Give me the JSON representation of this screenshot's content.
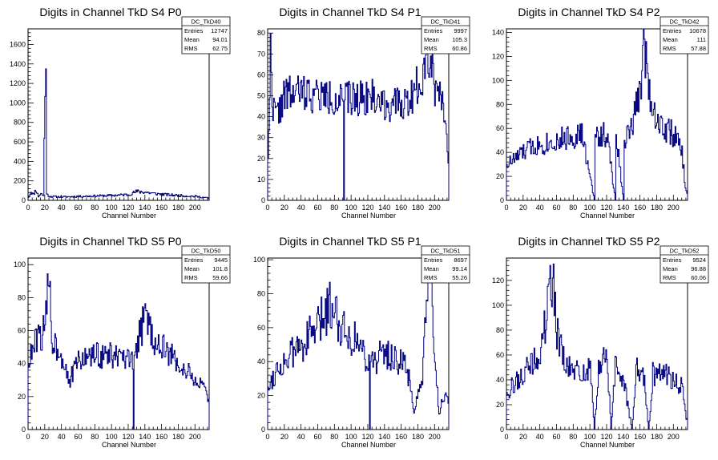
{
  "colors": {
    "line": "#000080",
    "frame": "#000000",
    "background": "#ffffff"
  },
  "chart_data": [
    {
      "type": "bar",
      "style": "step-histogram",
      "title": "Digits in Channel TkD S4 P0",
      "xlabel": "Channel Number",
      "xlim": [
        0,
        217
      ],
      "ylim": [
        0,
        1760
      ],
      "xticks": [
        0,
        20,
        40,
        60,
        80,
        100,
        120,
        140,
        160,
        180,
        200
      ],
      "yticks": [
        0,
        200,
        400,
        600,
        800,
        1000,
        1200,
        1400,
        1600
      ],
      "stats": {
        "name": "DC_TkD40",
        "rows": [
          [
            "Entries",
            "12747"
          ],
          [
            "Mean",
            "94.01"
          ],
          [
            "RMS",
            "62.75"
          ]
        ]
      },
      "anchors": [
        [
          0,
          30
        ],
        [
          3,
          90
        ],
        [
          6,
          60
        ],
        [
          9,
          110
        ],
        [
          12,
          40
        ],
        [
          15,
          70
        ],
        [
          18,
          50
        ],
        [
          21,
          1660
        ],
        [
          22,
          60
        ],
        [
          26,
          40
        ],
        [
          40,
          35
        ],
        [
          60,
          40
        ],
        [
          80,
          45
        ],
        [
          100,
          50
        ],
        [
          120,
          60
        ],
        [
          130,
          90
        ],
        [
          140,
          85
        ],
        [
          150,
          70
        ],
        [
          170,
          55
        ],
        [
          200,
          40
        ],
        [
          215,
          25
        ],
        [
          217,
          10
        ]
      ],
      "noise": 0.25,
      "seed": 11
    },
    {
      "type": "bar",
      "style": "step-histogram",
      "title": "Digits in Channel TkD S4 P1",
      "xlabel": "Channel Number",
      "xlim": [
        0,
        217
      ],
      "ylim": [
        0,
        82
      ],
      "xticks": [
        0,
        20,
        40,
        60,
        80,
        100,
        120,
        140,
        160,
        180,
        200
      ],
      "yticks": [
        0,
        10,
        20,
        30,
        40,
        50,
        60,
        70,
        80
      ],
      "stats": {
        "name": "DC_TkD41",
        "rows": [
          [
            "Entries",
            "9997"
          ],
          [
            "Mean",
            "105.3"
          ],
          [
            "RMS",
            "60.86"
          ]
        ]
      },
      "anchors": [
        [
          0,
          20
        ],
        [
          3,
          70
        ],
        [
          6,
          45
        ],
        [
          10,
          40
        ],
        [
          20,
          50
        ],
        [
          40,
          52
        ],
        [
          60,
          50
        ],
        [
          90,
          48
        ],
        [
          91,
          0
        ],
        [
          92,
          48
        ],
        [
          120,
          50
        ],
        [
          150,
          45
        ],
        [
          170,
          48
        ],
        [
          185,
          60
        ],
        [
          190,
          75
        ],
        [
          200,
          55
        ],
        [
          210,
          50
        ],
        [
          215,
          25
        ],
        [
          217,
          10
        ]
      ],
      "noise": 0.18,
      "seed": 22
    },
    {
      "type": "bar",
      "style": "step-histogram",
      "title": "Digits in Channel TkD S4 P2",
      "xlabel": "Channel Number",
      "xlim": [
        0,
        217
      ],
      "ylim": [
        0,
        143
      ],
      "xticks": [
        0,
        20,
        40,
        60,
        80,
        100,
        120,
        140,
        160,
        180,
        200
      ],
      "yticks": [
        0,
        20,
        40,
        60,
        80,
        100,
        120,
        140
      ],
      "stats": {
        "name": "DC_TkD42",
        "rows": [
          [
            "Entries",
            "10678"
          ],
          [
            "Mean",
            "111"
          ],
          [
            "RMS",
            "57.88"
          ]
        ]
      },
      "anchors": [
        [
          0,
          30
        ],
        [
          10,
          35
        ],
        [
          30,
          45
        ],
        [
          60,
          50
        ],
        [
          90,
          55
        ],
        [
          105,
          0
        ],
        [
          106,
          55
        ],
        [
          120,
          55
        ],
        [
          130,
          0
        ],
        [
          131,
          55
        ],
        [
          140,
          0
        ],
        [
          141,
          50
        ],
        [
          150,
          60
        ],
        [
          160,
          95
        ],
        [
          165,
          135
        ],
        [
          170,
          95
        ],
        [
          180,
          65
        ],
        [
          200,
          55
        ],
        [
          210,
          40
        ],
        [
          214,
          10
        ],
        [
          217,
          5
        ]
      ],
      "noise": 0.2,
      "seed": 33
    },
    {
      "type": "bar",
      "style": "step-histogram",
      "title": "Digits in Channel TkD S5 P0",
      "xlabel": "Channel Number",
      "xlim": [
        0,
        217
      ],
      "ylim": [
        0,
        104
      ],
      "xticks": [
        0,
        20,
        40,
        60,
        80,
        100,
        120,
        140,
        160,
        180,
        200
      ],
      "yticks": [
        0,
        20,
        40,
        60,
        80,
        100
      ],
      "stats": {
        "name": "DC_TkD50",
        "rows": [
          [
            "Entries",
            "9445"
          ],
          [
            "Mean",
            "101.8"
          ],
          [
            "RMS",
            "59.66"
          ]
        ]
      },
      "anchors": [
        [
          0,
          40
        ],
        [
          10,
          55
        ],
        [
          20,
          60
        ],
        [
          25,
          98
        ],
        [
          28,
          55
        ],
        [
          40,
          45
        ],
        [
          50,
          30
        ],
        [
          60,
          42
        ],
        [
          80,
          45
        ],
        [
          100,
          45
        ],
        [
          125,
          40
        ],
        [
          126,
          0
        ],
        [
          127,
          45
        ],
        [
          135,
          60
        ],
        [
          140,
          70
        ],
        [
          150,
          55
        ],
        [
          170,
          45
        ],
        [
          190,
          35
        ],
        [
          210,
          25
        ],
        [
          217,
          15
        ]
      ],
      "noise": 0.18,
      "seed": 44
    },
    {
      "type": "bar",
      "style": "step-histogram",
      "title": "Digits in Channel TkD S5 P1",
      "xlabel": "Channel Number",
      "xlim": [
        0,
        217
      ],
      "ylim": [
        0,
        101
      ],
      "xticks": [
        0,
        20,
        40,
        60,
        80,
        100,
        120,
        140,
        160,
        180,
        200
      ],
      "yticks": [
        0,
        20,
        40,
        60,
        80,
        100
      ],
      "stats": {
        "name": "DC_TkD51",
        "rows": [
          [
            "Entries",
            "8697"
          ],
          [
            "Mean",
            "99.14"
          ],
          [
            "RMS",
            "55.26"
          ]
        ]
      },
      "anchors": [
        [
          0,
          25
        ],
        [
          10,
          35
        ],
        [
          30,
          45
        ],
        [
          60,
          60
        ],
        [
          75,
          75
        ],
        [
          90,
          60
        ],
        [
          110,
          50
        ],
        [
          121,
          40
        ],
        [
          122,
          0
        ],
        [
          123,
          40
        ],
        [
          140,
          45
        ],
        [
          160,
          40
        ],
        [
          170,
          30
        ],
        [
          175,
          10
        ],
        [
          185,
          30
        ],
        [
          190,
          70
        ],
        [
          195,
          90
        ],
        [
          200,
          40
        ],
        [
          205,
          10
        ],
        [
          210,
          20
        ],
        [
          217,
          15
        ]
      ],
      "noise": 0.22,
      "seed": 55
    },
    {
      "type": "bar",
      "style": "step-histogram",
      "title": "Digits in Channel TkD S5 P2",
      "xlabel": "Channel Number",
      "xlim": [
        0,
        217
      ],
      "ylim": [
        0,
        138
      ],
      "xticks": [
        0,
        20,
        40,
        60,
        80,
        100,
        120,
        140,
        160,
        180,
        200
      ],
      "yticks": [
        0,
        20,
        40,
        60,
        80,
        100,
        120
      ],
      "stats": {
        "name": "DC_TkD52",
        "rows": [
          [
            "Entries",
            "9524"
          ],
          [
            "Mean",
            "96.88"
          ],
          [
            "RMS",
            "60.06"
          ]
        ]
      },
      "anchors": [
        [
          0,
          30
        ],
        [
          20,
          45
        ],
        [
          40,
          60
        ],
        [
          50,
          100
        ],
        [
          55,
          130
        ],
        [
          60,
          80
        ],
        [
          70,
          50
        ],
        [
          90,
          45
        ],
        [
          100,
          50
        ],
        [
          105,
          0
        ],
        [
          110,
          50
        ],
        [
          120,
          60
        ],
        [
          125,
          0
        ],
        [
          130,
          50
        ],
        [
          140,
          40
        ],
        [
          150,
          0
        ],
        [
          155,
          50
        ],
        [
          165,
          40
        ],
        [
          170,
          0
        ],
        [
          175,
          45
        ],
        [
          190,
          45
        ],
        [
          210,
          35
        ],
        [
          215,
          10
        ],
        [
          217,
          5
        ]
      ],
      "noise": 0.22,
      "seed": 66
    }
  ]
}
